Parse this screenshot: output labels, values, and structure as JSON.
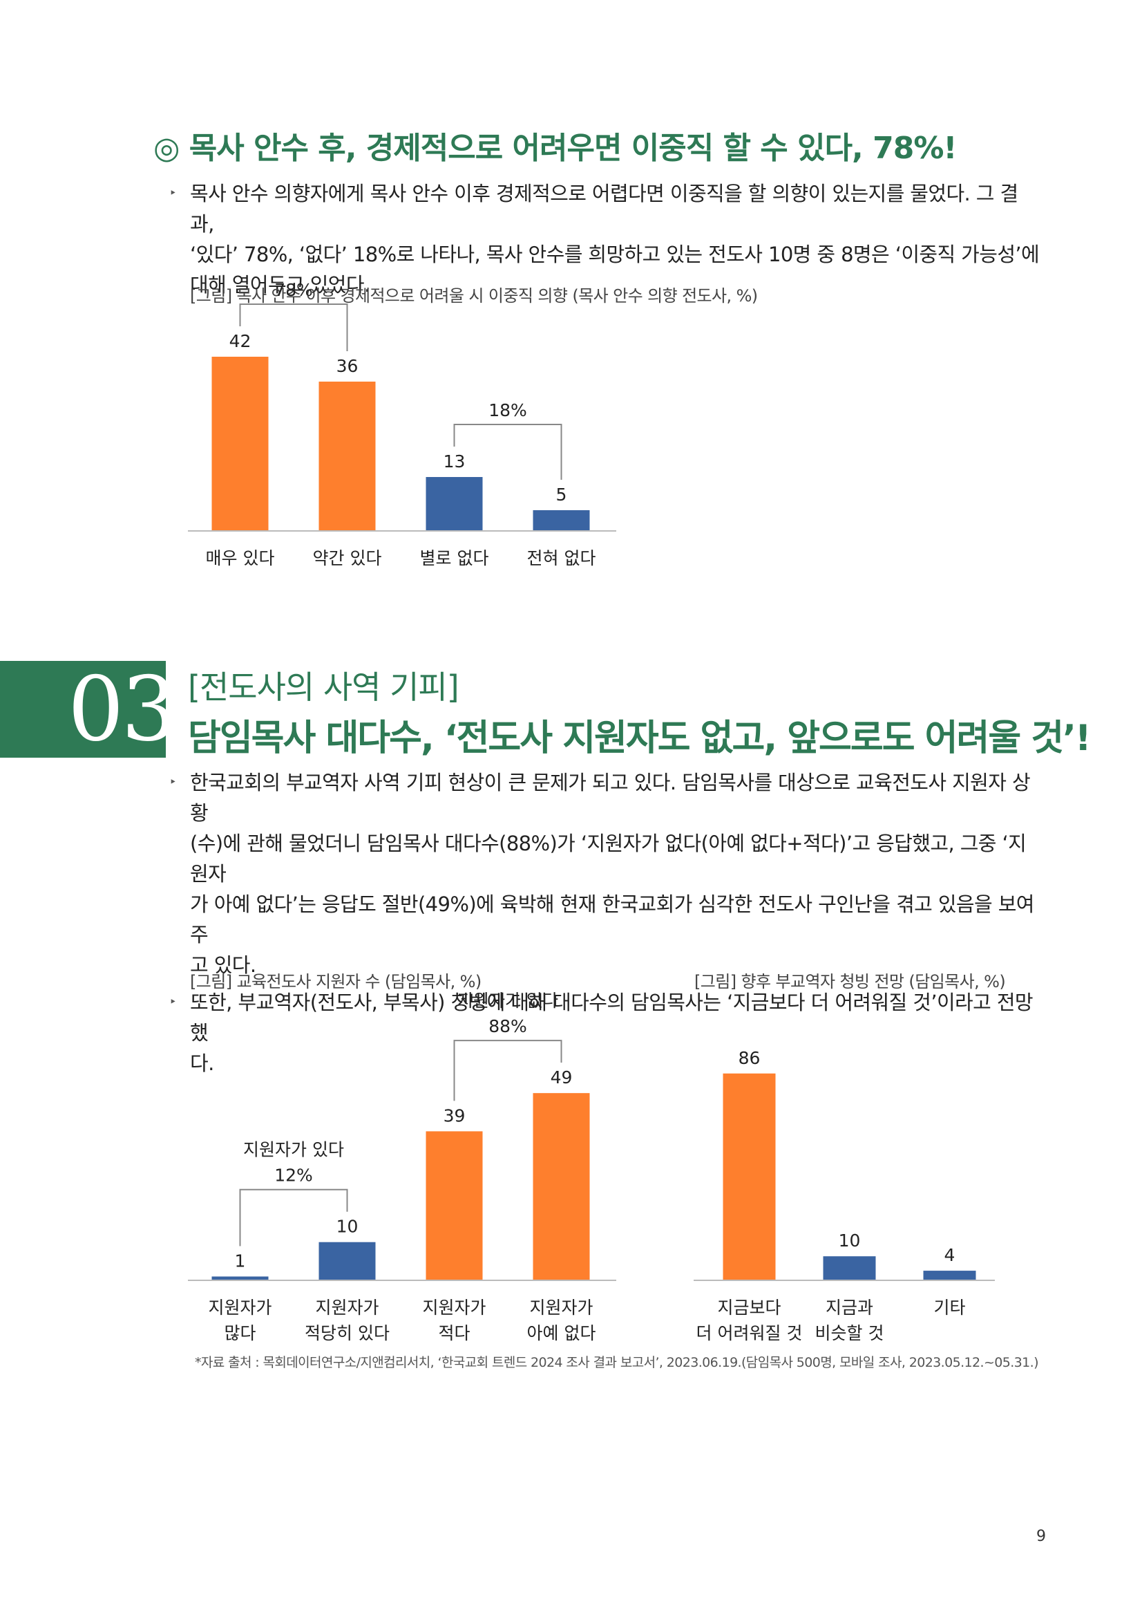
{
  "section1": {
    "heading": "◎ 목사 안수 후, 경제적으로 어려우면 이중직 할 수 있다, 78%!",
    "bullets": [
      {
        "lines": [
          "목사 안수 의향자에게 목사 안수 이후 경제적으로 어렵다면 이중직을 할 의향이 있는지를 물었다. 그 결과,",
          "‘있다’ 78%, ‘없다’ 18%로 나타나, 목사 안수를 희망하고 있는 전도사 10명 중 8명은 ‘이중직 가능성’에",
          "대해 열어두고 있었다."
        ]
      }
    ],
    "figure_caption": "[그림] 목사 안수 이후 경제적으로 어려울 시 이중직 의향 (목사 안수 의향 전도사, %)"
  },
  "section2": {
    "number": "03",
    "subtitle": "[전도사의 사역 기피]",
    "title": "담임목사 대다수, ‘전도사 지원자도 없고, 앞으로도 어려울 것’!",
    "bullets": [
      {
        "lines": [
          "한국교회의 부교역자 사역 기피 현상이 큰 문제가 되고 있다. 담임목사를 대상으로 교육전도사 지원자 상황",
          "(수)에 관해 물었더니 담임목사 대다수(88%)가 ‘지원자가 없다(아예 없다+적다)’고 응답했고, 그중 ‘지원자",
          "가 아예 없다’는 응답도 절반(49%)에 육박해 현재 한국교회가 심각한 전도사 구인난을 겪고 있음을 보여주",
          "고 있다."
        ]
      },
      {
        "lines": [
          "또한, 부교역자(전도사, 부목사) 청빙에 대해 대다수의 담임목사는 ‘지금보다 더 어려워질 것’이라고 전망했",
          "다."
        ]
      }
    ],
    "figure_caption_left": "[그림] 교육전도사 지원자 수 (담임목사, %)",
    "figure_caption_right": "[그림] 향후 부교역자 청빙 전망 (담임목사, %)"
  },
  "source_note": "*자료 출처 : 목회데이터연구소/지앤컴리서치, ‘한국교회 트렌드 2024 조사 결과 보고서’, 2023.06.19.(담임목사 500명, 모바일 조사, 2023.05.12.~05.31.)",
  "page_number": "9",
  "colors": {
    "orange": "#fe7f2d",
    "blue": "#3a64a2",
    "green": "#2e7a55"
  },
  "chart_data": [
    {
      "type": "bar",
      "categories": [
        "매우 있다",
        "약간 있다",
        "별로 없다",
        "전혀 없다"
      ],
      "values": [
        42,
        36,
        13,
        5
      ],
      "bar_colors": [
        "orange",
        "orange",
        "blue",
        "blue"
      ],
      "ylim": [
        0,
        45
      ],
      "brackets": [
        {
          "from": 0,
          "to": 1,
          "lines": [
            "78%"
          ]
        },
        {
          "from": 2,
          "to": 3,
          "lines": [
            "18%"
          ]
        }
      ]
    },
    {
      "type": "bar",
      "categories": [
        [
          "지원자가",
          "많다"
        ],
        [
          "지원자가",
          "적당히 있다"
        ],
        [
          "지원자가",
          "적다"
        ],
        [
          "지원자가",
          "아예 없다"
        ]
      ],
      "values": [
        1,
        10,
        39,
        49
      ],
      "bar_colors": [
        "blue",
        "blue",
        "orange",
        "orange"
      ],
      "ylim": [
        0,
        55
      ],
      "brackets": [
        {
          "from": 0,
          "to": 1,
          "lines": [
            "지원자가 있다",
            "12%"
          ]
        },
        {
          "from": 2,
          "to": 3,
          "lines": [
            "지원자가 없다",
            "88%"
          ]
        }
      ]
    },
    {
      "type": "bar",
      "categories": [
        [
          "지금보다",
          "더 어려워질 것"
        ],
        [
          "지금과",
          "비슷할 것"
        ],
        [
          "기타"
        ]
      ],
      "values": [
        86,
        10,
        4
      ],
      "bar_colors": [
        "orange",
        "blue",
        "blue"
      ],
      "ylim": [
        0,
        96
      ],
      "brackets": []
    }
  ]
}
